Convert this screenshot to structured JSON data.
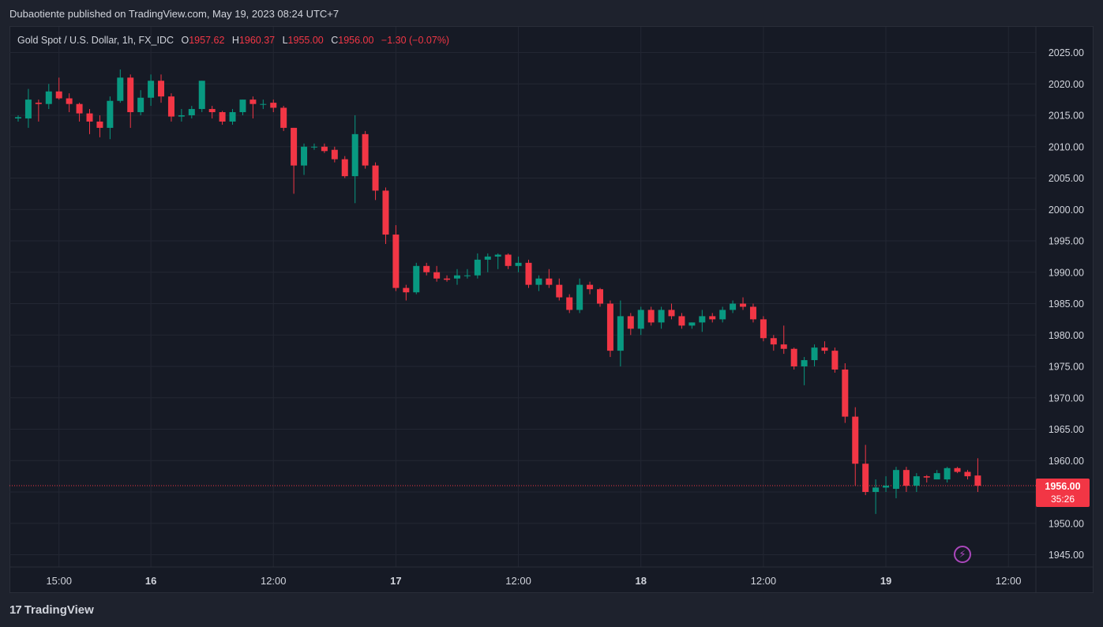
{
  "header": {
    "published_by": "Dubaotiente published on TradingView.com, May 19, 2023 08:24 UTC+7"
  },
  "legend": {
    "symbol": "Gold Spot / U.S. Dollar, 1h, FX_IDC",
    "o_label": "O",
    "o_value": "1957.62",
    "h_label": "H",
    "h_value": "1960.37",
    "l_label": "L",
    "l_value": "1955.00",
    "c_label": "C",
    "c_value": "1956.00",
    "change": "−1.30 (−0.07%)"
  },
  "last_price": {
    "value": "1956.00",
    "countdown": "35:26"
  },
  "brand": {
    "logo": "17",
    "name": "TradingView"
  },
  "icons": {
    "bolt": "lightning-icon"
  },
  "colors": {
    "up": "#089981",
    "down": "#f23645",
    "background": "#161a25",
    "grid": "#232733",
    "text": "#d1d4dc",
    "accent": "#ab47bc"
  },
  "chart_data": {
    "type": "candlestick",
    "interval": "1h",
    "y_ticks": [
      2025,
      2020,
      2015,
      2010,
      2005,
      2000,
      1995,
      1990,
      1985,
      1980,
      1975,
      1970,
      1965,
      1960,
      1955,
      1950,
      1945
    ],
    "ylim": [
      1943,
      2030
    ],
    "x_ticks": [
      {
        "label": "15:00",
        "index": 4,
        "bold": false
      },
      {
        "label": "16",
        "index": 13,
        "bold": true
      },
      {
        "label": "12:00",
        "index": 25,
        "bold": false
      },
      {
        "label": "17",
        "index": 37,
        "bold": true
      },
      {
        "label": "12:00",
        "index": 49,
        "bold": false
      },
      {
        "label": "18",
        "index": 61,
        "bold": true
      },
      {
        "label": "12:00",
        "index": 73,
        "bold": false
      },
      {
        "label": "19",
        "index": 85,
        "bold": true
      },
      {
        "label": "12:00",
        "index": 97,
        "bold": false
      }
    ],
    "grid": true,
    "last_price_line": 1956.0,
    "candles": [
      {
        "o": 2014.5,
        "h": 2015.0,
        "l": 2014.0,
        "c": 2014.7
      },
      {
        "o": 2014.5,
        "h": 2019.2,
        "l": 2013.0,
        "c": 2017.5
      },
      {
        "o": 2017.0,
        "h": 2017.5,
        "l": 2014.0,
        "c": 2016.8
      },
      {
        "o": 2016.8,
        "h": 2020.0,
        "l": 2016.0,
        "c": 2018.8
      },
      {
        "o": 2018.8,
        "h": 2021.0,
        "l": 2017.5,
        "c": 2017.7
      },
      {
        "o": 2017.7,
        "h": 2018.5,
        "l": 2015.5,
        "c": 2016.8
      },
      {
        "o": 2016.8,
        "h": 2017.0,
        "l": 2014.0,
        "c": 2015.3
      },
      {
        "o": 2015.3,
        "h": 2016.0,
        "l": 2012.0,
        "c": 2014.0
      },
      {
        "o": 2014.0,
        "h": 2015.0,
        "l": 2011.5,
        "c": 2013.0
      },
      {
        "o": 2013.0,
        "h": 2018.0,
        "l": 2011.2,
        "c": 2017.3
      },
      {
        "o": 2017.3,
        "h": 2022.3,
        "l": 2017.0,
        "c": 2021.0
      },
      {
        "o": 2021.0,
        "h": 2021.5,
        "l": 2013.0,
        "c": 2015.5
      },
      {
        "o": 2015.5,
        "h": 2019.0,
        "l": 2015.0,
        "c": 2017.8
      },
      {
        "o": 2017.8,
        "h": 2021.5,
        "l": 2016.5,
        "c": 2020.5
      },
      {
        "o": 2020.5,
        "h": 2021.5,
        "l": 2017.0,
        "c": 2018.0
      },
      {
        "o": 2018.0,
        "h": 2018.5,
        "l": 2014.0,
        "c": 2014.8
      },
      {
        "o": 2014.8,
        "h": 2016.0,
        "l": 2014.0,
        "c": 2015.0
      },
      {
        "o": 2015.0,
        "h": 2016.5,
        "l": 2014.5,
        "c": 2016.0
      },
      {
        "o": 2016.0,
        "h": 2020.5,
        "l": 2015.5,
        "c": 2020.5
      },
      {
        "o": 2016.0,
        "h": 2016.5,
        "l": 2014.5,
        "c": 2015.5
      },
      {
        "o": 2015.5,
        "h": 2015.7,
        "l": 2013.5,
        "c": 2014.0
      },
      {
        "o": 2014.0,
        "h": 2016.0,
        "l": 2013.5,
        "c": 2015.5
      },
      {
        "o": 2015.5,
        "h": 2017.5,
        "l": 2015.0,
        "c": 2017.5
      },
      {
        "o": 2017.5,
        "h": 2018.0,
        "l": 2014.5,
        "c": 2016.8
      },
      {
        "o": 2016.8,
        "h": 2017.5,
        "l": 2016.0,
        "c": 2016.8
      },
      {
        "o": 2017.0,
        "h": 2017.5,
        "l": 2015.5,
        "c": 2016.2
      },
      {
        "o": 2016.2,
        "h": 2016.5,
        "l": 2012.5,
        "c": 2013.0
      },
      {
        "o": 2013.0,
        "h": 2013.0,
        "l": 2002.5,
        "c": 2007.0
      },
      {
        "o": 2007.0,
        "h": 2010.5,
        "l": 2005.5,
        "c": 2010.0
      },
      {
        "o": 2010.0,
        "h": 2010.5,
        "l": 2009.5,
        "c": 2010.0
      },
      {
        "o": 2010.0,
        "h": 2010.5,
        "l": 2009.0,
        "c": 2009.3
      },
      {
        "o": 2009.5,
        "h": 2010.0,
        "l": 2007.5,
        "c": 2008.0
      },
      {
        "o": 2008.0,
        "h": 2008.5,
        "l": 2005.0,
        "c": 2005.3
      },
      {
        "o": 2005.3,
        "h": 2015.0,
        "l": 2001.0,
        "c": 2012.0
      },
      {
        "o": 2012.0,
        "h": 2012.5,
        "l": 2006.5,
        "c": 2007.0
      },
      {
        "o": 2007.0,
        "h": 2007.5,
        "l": 2001.5,
        "c": 2003.0
      },
      {
        "o": 2003.0,
        "h": 2003.5,
        "l": 1994.5,
        "c": 1996.0
      },
      {
        "o": 1996.0,
        "h": 1997.5,
        "l": 1987.0,
        "c": 1987.5
      },
      {
        "o": 1987.5,
        "h": 1988.0,
        "l": 1985.5,
        "c": 1986.8
      },
      {
        "o": 1986.8,
        "h": 1991.5,
        "l": 1986.5,
        "c": 1991.0
      },
      {
        "o": 1991.0,
        "h": 1991.5,
        "l": 1989.5,
        "c": 1990.0
      },
      {
        "o": 1990.0,
        "h": 1991.0,
        "l": 1988.5,
        "c": 1989.0
      },
      {
        "o": 1989.0,
        "h": 1989.5,
        "l": 1988.5,
        "c": 1988.8
      },
      {
        "o": 1989.0,
        "h": 1990.5,
        "l": 1988.0,
        "c": 1989.5
      },
      {
        "o": 1989.5,
        "h": 1990.5,
        "l": 1989.0,
        "c": 1989.5
      },
      {
        "o": 1989.5,
        "h": 1993.0,
        "l": 1989.0,
        "c": 1992.0
      },
      {
        "o": 1992.0,
        "h": 1993.0,
        "l": 1990.0,
        "c": 1992.5
      },
      {
        "o": 1992.5,
        "h": 1993.0,
        "l": 1990.5,
        "c": 1992.8
      },
      {
        "o": 1992.8,
        "h": 1993.0,
        "l": 1990.5,
        "c": 1991.0
      },
      {
        "o": 1991.0,
        "h": 1992.5,
        "l": 1990.0,
        "c": 1991.5
      },
      {
        "o": 1991.5,
        "h": 1992.0,
        "l": 1987.5,
        "c": 1988.0
      },
      {
        "o": 1988.0,
        "h": 1989.5,
        "l": 1987.0,
        "c": 1989.0
      },
      {
        "o": 1989.0,
        "h": 1990.5,
        "l": 1987.5,
        "c": 1988.0
      },
      {
        "o": 1988.0,
        "h": 1989.0,
        "l": 1985.5,
        "c": 1986.0
      },
      {
        "o": 1986.0,
        "h": 1986.5,
        "l": 1983.5,
        "c": 1984.0
      },
      {
        "o": 1984.0,
        "h": 1989.0,
        "l": 1983.5,
        "c": 1988.0
      },
      {
        "o": 1988.0,
        "h": 1988.5,
        "l": 1986.5,
        "c": 1987.3
      },
      {
        "o": 1987.3,
        "h": 1987.5,
        "l": 1984.5,
        "c": 1985.0
      },
      {
        "o": 1985.0,
        "h": 1985.5,
        "l": 1976.5,
        "c": 1977.5
      },
      {
        "o": 1977.5,
        "h": 1985.5,
        "l": 1975.0,
        "c": 1983.0
      },
      {
        "o": 1983.0,
        "h": 1983.5,
        "l": 1980.0,
        "c": 1981.0
      },
      {
        "o": 1981.0,
        "h": 1984.5,
        "l": 1980.0,
        "c": 1984.0
      },
      {
        "o": 1984.0,
        "h": 1984.5,
        "l": 1981.5,
        "c": 1982.0
      },
      {
        "o": 1982.0,
        "h": 1984.5,
        "l": 1981.0,
        "c": 1984.0
      },
      {
        "o": 1984.0,
        "h": 1985.0,
        "l": 1982.5,
        "c": 1983.0
      },
      {
        "o": 1983.0,
        "h": 1983.5,
        "l": 1981.0,
        "c": 1981.5
      },
      {
        "o": 1981.5,
        "h": 1982.0,
        "l": 1981.0,
        "c": 1982.0
      },
      {
        "o": 1982.0,
        "h": 1984.0,
        "l": 1980.5,
        "c": 1983.0
      },
      {
        "o": 1983.0,
        "h": 1983.5,
        "l": 1982.0,
        "c": 1982.5
      },
      {
        "o": 1982.5,
        "h": 1984.5,
        "l": 1982.0,
        "c": 1984.0
      },
      {
        "o": 1984.0,
        "h": 1985.5,
        "l": 1983.5,
        "c": 1985.0
      },
      {
        "o": 1985.0,
        "h": 1986.0,
        "l": 1984.0,
        "c": 1984.5
      },
      {
        "o": 1984.5,
        "h": 1985.0,
        "l": 1982.0,
        "c": 1982.5
      },
      {
        "o": 1982.5,
        "h": 1983.0,
        "l": 1979.0,
        "c": 1979.5
      },
      {
        "o": 1979.5,
        "h": 1980.0,
        "l": 1977.5,
        "c": 1978.5
      },
      {
        "o": 1978.5,
        "h": 1981.5,
        "l": 1977.0,
        "c": 1977.8
      },
      {
        "o": 1977.8,
        "h": 1978.0,
        "l": 1974.5,
        "c": 1975.0
      },
      {
        "o": 1975.0,
        "h": 1976.5,
        "l": 1972.0,
        "c": 1976.0
      },
      {
        "o": 1976.0,
        "h": 1978.5,
        "l": 1975.0,
        "c": 1978.0
      },
      {
        "o": 1978.0,
        "h": 1979.0,
        "l": 1977.0,
        "c": 1977.5
      },
      {
        "o": 1977.5,
        "h": 1978.0,
        "l": 1974.0,
        "c": 1974.5
      },
      {
        "o": 1974.5,
        "h": 1975.5,
        "l": 1966.0,
        "c": 1967.0
      },
      {
        "o": 1967.0,
        "h": 1968.5,
        "l": 1956.0,
        "c": 1959.5
      },
      {
        "o": 1959.5,
        "h": 1962.5,
        "l": 1954.5,
        "c": 1955.0
      },
      {
        "o": 1955.0,
        "h": 1957.0,
        "l": 1951.5,
        "c": 1955.7
      },
      {
        "o": 1955.7,
        "h": 1957.5,
        "l": 1955.0,
        "c": 1956.0
      },
      {
        "o": 1955.5,
        "h": 1959.0,
        "l": 1954.0,
        "c": 1958.5
      },
      {
        "o": 1958.5,
        "h": 1959.0,
        "l": 1955.0,
        "c": 1956.0
      },
      {
        "o": 1956.0,
        "h": 1958.0,
        "l": 1955.0,
        "c": 1957.5
      },
      {
        "o": 1957.5,
        "h": 1957.7,
        "l": 1956.5,
        "c": 1957.3
      },
      {
        "o": 1957.0,
        "h": 1958.5,
        "l": 1957.0,
        "c": 1958.0
      },
      {
        "o": 1957.0,
        "h": 1959.0,
        "l": 1956.5,
        "c": 1958.8
      },
      {
        "o": 1958.8,
        "h": 1959.0,
        "l": 1958.0,
        "c": 1958.2
      },
      {
        "o": 1958.2,
        "h": 1958.5,
        "l": 1957.0,
        "c": 1957.5
      },
      {
        "o": 1957.62,
        "h": 1960.37,
        "l": 1955.0,
        "c": 1956.0
      }
    ]
  }
}
